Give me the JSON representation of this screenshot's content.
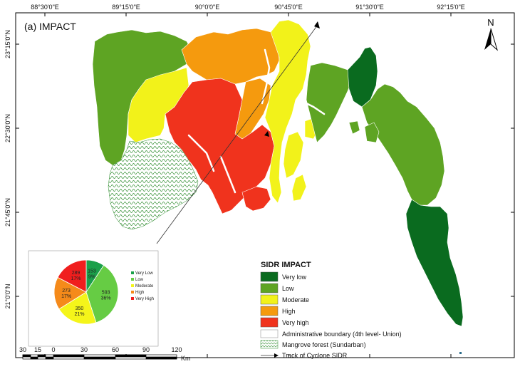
{
  "title": "(a) IMPACT",
  "north_label": "N",
  "lon_ticks_top": [
    "88°30'0\"E",
    "89°15'0\"E",
    "90°0'0\"E",
    "90°45'0\"E",
    "91°30'0\"E",
    "92°15'0\"E"
  ],
  "lat_ticks_left": [
    "23°15'0\"N",
    "22°30'0\"N",
    "21°45'0\"N",
    "21°0'0\"N"
  ],
  "legend": {
    "title": "SIDR IMPACT",
    "classes": [
      {
        "label": "Very low",
        "color": "#0a6b1f"
      },
      {
        "label": "Low",
        "color": "#5ea423"
      },
      {
        "label": "Moderate",
        "color": "#f2f21a"
      },
      {
        "label": "High",
        "color": "#f59a0e"
      },
      {
        "label": "Very high",
        "color": "#f0331d"
      }
    ],
    "boundary_label": "Administrative boundary (4th level- Union)",
    "mangrove_label": "Mangrove forest (Sundarban)",
    "track_label": "Track of Cyclone SIDR"
  },
  "chart_data": {
    "type": "pie",
    "slices": [
      {
        "name": "Very Low",
        "value": 153,
        "percent": "9%",
        "color": "#1aa04a"
      },
      {
        "name": "Low",
        "value": 593,
        "percent": "36%",
        "color": "#66cc44"
      },
      {
        "name": "Moderate",
        "value": 350,
        "percent": "21%",
        "color": "#f5f51a"
      },
      {
        "name": "High",
        "value": 273,
        "percent": "17%",
        "color": "#f58a1a"
      },
      {
        "name": "Very High",
        "value": 289,
        "percent": "17%",
        "color": "#f01e1e"
      }
    ],
    "legend_entries": [
      "Very Low",
      "Low",
      "Moderate",
      "High",
      "Very High"
    ]
  },
  "scale_bar": {
    "labels": [
      "30",
      "15",
      "0",
      "30",
      "60",
      "90",
      "120"
    ],
    "unit": "Km"
  }
}
